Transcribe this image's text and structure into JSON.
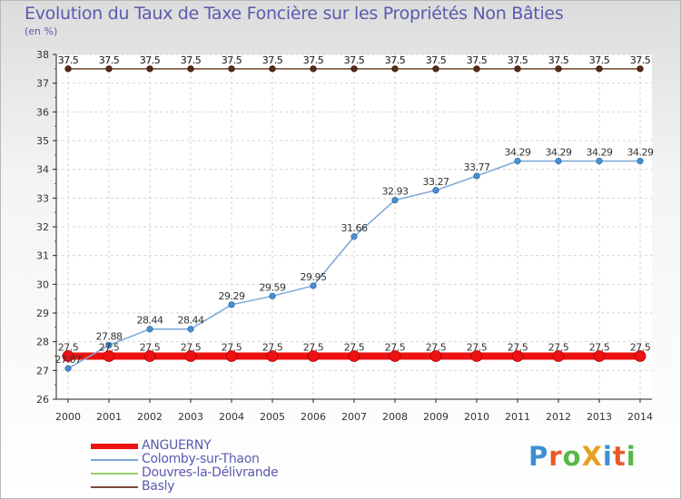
{
  "chart_data": {
    "type": "line",
    "title": "Evolution du Taux de Taxe Foncière sur les Propriétés Non Bâties",
    "subtitle": "(en %)",
    "xlabel": "",
    "ylabel": "",
    "x": [
      "2000",
      "2001",
      "2002",
      "2003",
      "2004",
      "2005",
      "2006",
      "2007",
      "2008",
      "2009",
      "2010",
      "2011",
      "2012",
      "2013",
      "2014"
    ],
    "ylim": [
      26,
      38
    ],
    "yticks": [
      "26",
      "27",
      "28",
      "29",
      "30",
      "31",
      "32",
      "33",
      "34",
      "35",
      "36",
      "37",
      "38"
    ],
    "grid": true,
    "legend_position": "bottom-left",
    "series": [
      {
        "name": "ANGUERNY",
        "color": "#ee1111",
        "values": [
          27.5,
          27.5,
          27.5,
          27.5,
          27.5,
          27.5,
          27.5,
          27.5,
          27.5,
          27.5,
          27.5,
          27.5,
          27.5,
          27.5,
          27.5
        ],
        "labels": [
          "27.5",
          "27.5",
          "27.5",
          "27.5",
          "27.5",
          "27.5",
          "27.5",
          "27.5",
          "27.5",
          "27.5",
          "27.5",
          "27.5",
          "27.5",
          "27.5",
          "27.5"
        ]
      },
      {
        "name": "Colomby-sur-Thaon",
        "color": "#7ba7d8",
        "values": [
          27.07,
          27.88,
          28.44,
          28.44,
          29.29,
          29.59,
          29.95,
          31.66,
          32.93,
          33.27,
          33.77,
          34.29,
          34.29,
          34.29,
          34.29
        ],
        "labels": [
          "27.07",
          "27.88",
          "28.44",
          "28.44",
          "29.29",
          "29.59",
          "29.95",
          "31.66",
          "32.93",
          "33.27",
          "33.77",
          "34.29",
          "34.29",
          "34.29",
          "34.29"
        ]
      },
      {
        "name": "Douvres-la-Délivrande",
        "color": "#9acd6a",
        "values": [
          37.5,
          37.5,
          37.5,
          37.5,
          37.5,
          37.5,
          37.5,
          37.5,
          37.5,
          37.5,
          37.5,
          37.5,
          37.5,
          37.5,
          37.5
        ],
        "labels": [
          "37.5",
          "37.5",
          "37.5",
          "37.5",
          "37.5",
          "37.5",
          "37.5",
          "37.5",
          "37.5",
          "37.5",
          "37.5",
          "37.5",
          "37.5",
          "37.5",
          "37.5"
        ]
      },
      {
        "name": "Basly",
        "color": "#7a4a3a",
        "values": [
          37.5,
          37.5,
          37.5,
          37.5,
          37.5,
          37.5,
          37.5,
          37.5,
          37.5,
          37.5,
          37.5,
          37.5,
          37.5,
          37.5,
          37.5
        ],
        "labels": [
          "37.5",
          "37.5",
          "37.5",
          "37.5",
          "37.5",
          "37.5",
          "37.5",
          "37.5",
          "37.5",
          "37.5",
          "37.5",
          "37.5",
          "37.5",
          "37.5",
          "37.5"
        ]
      }
    ]
  },
  "logo": {
    "text": "ProXiti",
    "letter_colors": [
      "#3b8fd6",
      "#e85a2a",
      "#55b848",
      "#e8a020",
      "#3b8fd6",
      "#e85a2a",
      "#55b848"
    ]
  }
}
